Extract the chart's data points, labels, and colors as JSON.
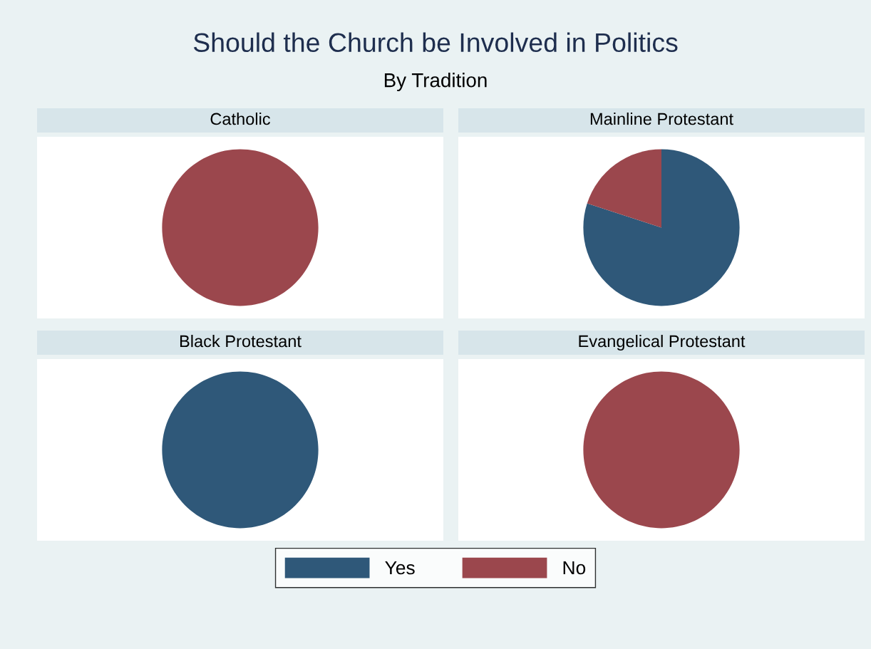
{
  "chart_data": [
    {
      "type": "pie",
      "title": "Catholic",
      "categories": [
        "Yes",
        "No"
      ],
      "values": [
        0,
        100
      ],
      "colors": [
        "#2f5879",
        "#9b474d"
      ],
      "legend": "bottom",
      "annotations": [
        "Should the Church be Involved in Politics",
        "By Tradition"
      ]
    },
    {
      "type": "pie",
      "title": "Mainline Protestant",
      "categories": [
        null,
        null
      ],
      "values": [
        80,
        20
      ],
      "colors": [
        "#2f5879",
        "#9b474d"
      ]
    },
    {
      "type": "pie",
      "title": "Black Protestant",
      "categories": [
        null,
        null
      ],
      "values": [
        100,
        0
      ],
      "colors": [
        "#2f5879",
        "#9b474d"
      ]
    },
    {
      "type": "pie",
      "title": "Evangelical Protestant",
      "categories": [
        null,
        null
      ],
      "values": [
        0,
        100
      ],
      "colors": [
        "#2f5879",
        "#9b474d"
      ]
    }
  ]
}
